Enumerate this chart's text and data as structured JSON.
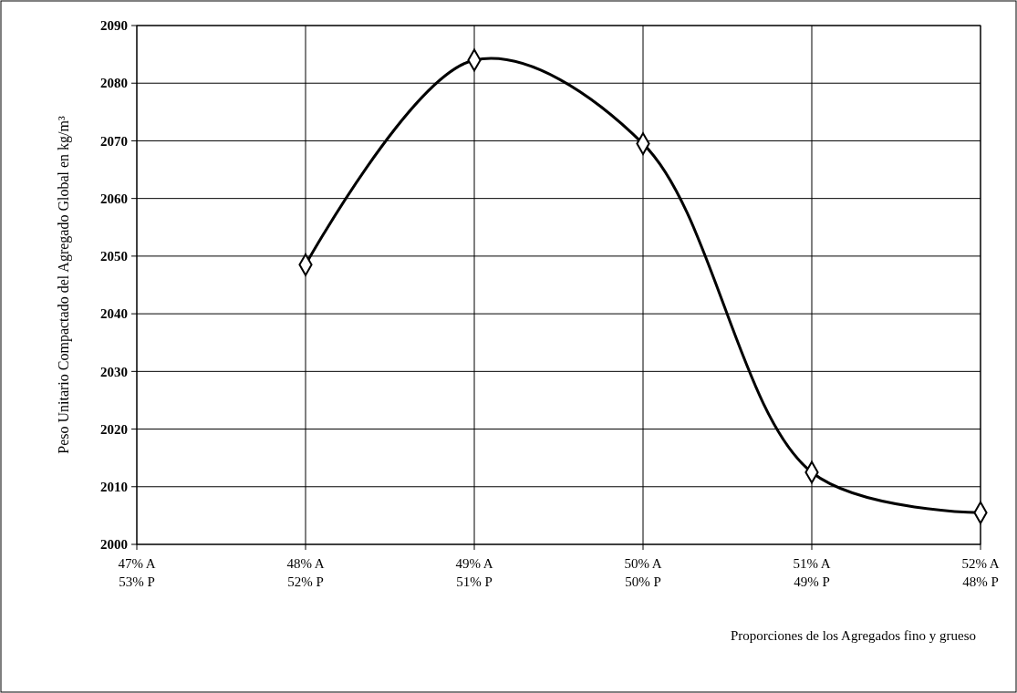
{
  "chart_data": {
    "type": "line",
    "ylabel": "Peso Unitario Compactado del Agregado Global en kg/m³",
    "xlabel": "Proporciones de los Agregados fino y grueso",
    "categories": [
      "47%  A\n53% P",
      "48%  A\n52% P",
      "49%  A\n51% P",
      "50% A\n50% P",
      "51% A\n49% P",
      "52%  A\n48% P"
    ],
    "series": [
      {
        "color": "#000000",
        "values": [
          null,
          2048.5,
          2084,
          2069.5,
          2012.5,
          2005.5
        ]
      }
    ],
    "ylim": [
      2000,
      2090
    ],
    "yticks": [
      2000,
      2010,
      2020,
      2030,
      2040,
      2050,
      2060,
      2070,
      2080,
      2090
    ],
    "grid": true,
    "marker": "diamond",
    "line_style": "solid"
  }
}
